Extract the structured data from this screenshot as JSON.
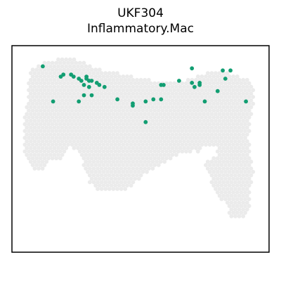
{
  "chart_data": {
    "type": "scatter",
    "title": "UKF304",
    "subtitle": "Inflammatory.Mac",
    "xlabel": "",
    "ylabel": "",
    "grid": false,
    "axes_ticks": false,
    "colors": {
      "background_spot": "#ebebeb",
      "highlight_spot": "#129e72",
      "frame": "#000000"
    },
    "xlim": [
      0,
      100
    ],
    "ylim": [
      0,
      100
    ],
    "tissue_outline": [
      [
        7,
        88
      ],
      [
        12,
        92
      ],
      [
        19,
        94
      ],
      [
        27,
        93
      ],
      [
        32,
        89
      ],
      [
        40,
        87
      ],
      [
        48,
        85
      ],
      [
        56,
        83
      ],
      [
        64,
        82
      ],
      [
        71,
        85
      ],
      [
        80,
        88
      ],
      [
        86,
        86
      ],
      [
        92,
        84
      ],
      [
        94,
        79
      ],
      [
        94,
        70
      ],
      [
        93,
        64
      ],
      [
        92,
        55
      ],
      [
        93,
        47
      ],
      [
        94,
        40
      ],
      [
        93,
        33
      ],
      [
        93,
        22
      ],
      [
        90,
        16
      ],
      [
        85,
        17
      ],
      [
        83,
        24
      ],
      [
        80,
        27
      ],
      [
        77,
        36
      ],
      [
        74,
        44
      ],
      [
        71,
        49
      ],
      [
        64,
        47
      ],
      [
        57,
        42
      ],
      [
        52,
        38
      ],
      [
        47,
        32
      ],
      [
        42,
        29
      ],
      [
        36,
        29
      ],
      [
        32,
        31
      ],
      [
        30,
        34
      ],
      [
        28,
        42
      ],
      [
        26,
        48
      ],
      [
        23,
        51
      ],
      [
        19,
        45
      ],
      [
        15,
        44
      ],
      [
        11,
        39
      ],
      [
        7,
        41
      ],
      [
        5,
        48
      ],
      [
        5,
        57
      ],
      [
        5,
        66
      ],
      [
        6,
        74
      ],
      [
        6,
        81
      ]
    ],
    "tissue_holes": [
      [
        [
          75,
          43
        ],
        [
          80,
          47
        ],
        [
          79,
          52
        ],
        [
          75,
          51
        ],
        [
          72,
          47
        ]
      ]
    ],
    "highlight_points": [
      [
        12,
        90
      ],
      [
        19,
        85
      ],
      [
        20,
        86
      ],
      [
        23,
        86
      ],
      [
        24,
        85
      ],
      [
        26,
        84
      ],
      [
        29,
        85
      ],
      [
        29,
        84
      ],
      [
        30,
        83
      ],
      [
        27,
        83
      ],
      [
        31,
        83
      ],
      [
        33,
        82
      ],
      [
        34,
        81
      ],
      [
        36,
        80
      ],
      [
        28,
        81
      ],
      [
        30,
        80
      ],
      [
        16,
        73
      ],
      [
        26,
        73
      ],
      [
        28,
        76
      ],
      [
        31,
        76
      ],
      [
        41,
        74
      ],
      [
        47,
        72
      ],
      [
        47,
        71
      ],
      [
        52,
        73
      ],
      [
        55,
        74
      ],
      [
        58,
        81
      ],
      [
        59,
        81
      ],
      [
        65,
        83
      ],
      [
        58,
        74
      ],
      [
        52,
        63
      ],
      [
        70,
        89
      ],
      [
        70,
        82
      ],
      [
        73,
        82
      ],
      [
        71,
        80
      ],
      [
        73,
        81
      ],
      [
        80,
        78
      ],
      [
        75,
        73
      ],
      [
        82,
        88
      ],
      [
        83,
        84
      ],
      [
        85,
        88
      ],
      [
        91,
        73
      ]
    ]
  }
}
